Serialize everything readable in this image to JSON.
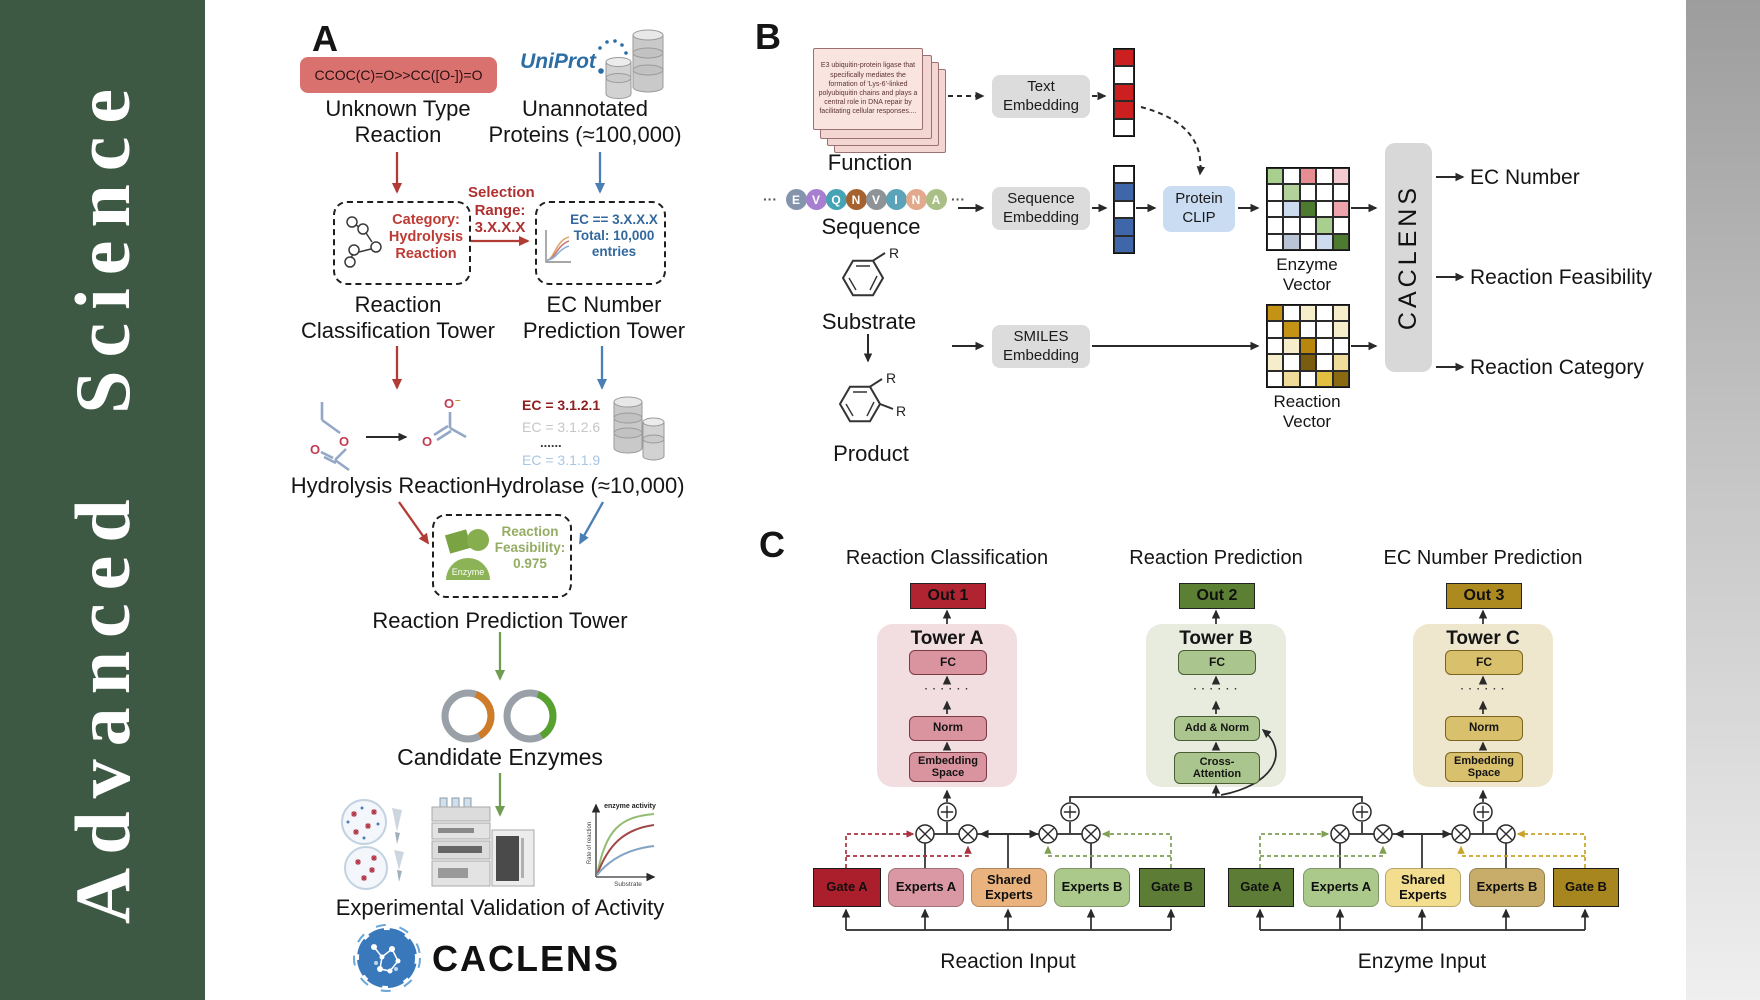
{
  "journal": {
    "name": "Advanced Science"
  },
  "panel_a": {
    "label": "A",
    "smiles": "CCOC(C)=O>>CC([O-])=O",
    "unknown_type": "Unknown Type\nReaction",
    "uniprot": "UniProt",
    "unannotated": "Unannotated\nProteins (≈100,000)",
    "selection_range": "Selection\nRange:\n3.X.X.X",
    "category_box": "Category:\nHydrolysis\nReaction",
    "ec_box": "EC == 3.X.X.X\nTotal: 10,000\nentries",
    "classification_tower": "Reaction\nClassification Tower",
    "ec_tower": "EC Number\nPrediction Tower",
    "hydrolysis_reaction": "Hydrolysis Reaction",
    "ec_list": {
      "l1": "EC = 3.1.2.1",
      "l2": "EC = 3.1.2.6",
      "l3": "......",
      "l4": "EC = 3.1.1.9"
    },
    "hydrolase": "Hydrolase (≈10,000)",
    "enzyme_badge": "Enzyme",
    "feasibility": "Reaction\nFeasibility:\n0.975",
    "prediction_tower": "Reaction Prediction Tower",
    "candidate_enzymes": "Candidate Enzymes",
    "activity_plot": {
      "curve_label": "enzyme activity",
      "ylabel": "Rate of reaction",
      "xlabel": "Substrate"
    },
    "validation": "Experimental Validation of Activity",
    "brand": "CACLENS"
  },
  "panel_b": {
    "label": "B",
    "function_card": "E3 ubiquitin-protein ligase that specifically mediates the formation of 'Lys-6'-linked polyubiquitin chains and plays a central role in DNA repair by facilitating cellular responses....",
    "function_label": "Function",
    "ellipsis": "···",
    "sequence_tokens": [
      {
        "t": "E",
        "c": "#8494ac"
      },
      {
        "t": "V",
        "c": "#a87fd0"
      },
      {
        "t": "Q",
        "c": "#45a3b5"
      },
      {
        "t": "N",
        "c": "#a6622e"
      },
      {
        "t": "V",
        "c": "#8e9397"
      },
      {
        "t": "I",
        "c": "#5ba3b8"
      },
      {
        "t": "N",
        "c": "#e2a98c"
      },
      {
        "t": "A",
        "c": "#a9bf85"
      }
    ],
    "sequence_label": "Sequence",
    "substrate_label": "Substrate",
    "product_label": "Product",
    "r_group": "R",
    "text_embedding": "Text\nEmbedding",
    "sequence_embedding": "Sequence\nEmbedding",
    "smiles_embedding": "SMILES\nEmbedding",
    "protein_clip": "Protein\nCLIP",
    "text_vector": [
      "#cc1f1f",
      "#ffffff",
      "#cc1f1f",
      "#cc1f1f",
      "#ffffff"
    ],
    "sequence_vector": [
      "#ffffff",
      "#3f66a8",
      "#ffffff",
      "#3f66a8",
      "#3f66a8"
    ],
    "enzyme_vector_label": "Enzyme Vector",
    "reaction_vector_label": "Reaction Vector",
    "enzyme_vector_grid": [
      [
        "#a9cf8e",
        "#ffffff",
        "#e58d90",
        "#ffffff",
        "#f4c9cf"
      ],
      [
        "#ffffff",
        "#b2d19b",
        "#ffffff",
        "#ffffff",
        "#ffffff"
      ],
      [
        "#ffffff",
        "#ccdcee",
        "#4d7a2f",
        "#ffffff",
        "#eda4ad"
      ],
      [
        "#ffffff",
        "#ffffff",
        "#ffffff",
        "#a9cf8e",
        "#ffffff"
      ],
      [
        "#ffffff",
        "#b9c4d6",
        "#ffffff",
        "#ccdcee",
        "#4d7a2f"
      ]
    ],
    "reaction_vector_grid": [
      [
        "#c49316",
        "#ffffff",
        "#f6eecb",
        "#ffffff",
        "#f6eecb"
      ],
      [
        "#ffffff",
        "#c49316",
        "#ffffff",
        "#ffffff",
        "#f6eecb"
      ],
      [
        "#ffffff",
        "#f6eecb",
        "#b8860b",
        "#ffffff",
        "#ffffff"
      ],
      [
        "#f6eecb",
        "#ffffff",
        "#7a5c0e",
        "#ffffff",
        "#f0dc9a"
      ],
      [
        "#ffffff",
        "#f0dc9a",
        "#ffffff",
        "#e3bf3f",
        "#8a6a10"
      ]
    ],
    "caclens": "CACLENS",
    "outputs": {
      "o1": "EC Number",
      "o2": "Reaction Feasibility",
      "o3": "Reaction Category"
    }
  },
  "panel_c": {
    "label": "C",
    "headers": {
      "h1": "Reaction Classification",
      "h2": "Reaction Prediction",
      "h3": "EC Number Prediction"
    },
    "tower_a": {
      "out": "Out 1",
      "title": "Tower A",
      "fc": "FC",
      "dots": "· · · · · ·",
      "norm": "Norm",
      "bottom": "Embedding\nSpace"
    },
    "tower_b": {
      "out": "Out 2",
      "title": "Tower B",
      "fc": "FC",
      "dots": "· · · · · ·",
      "norm": "Add & Norm",
      "bottom": "Cross-\nAttention"
    },
    "tower_c": {
      "out": "Out 3",
      "title": "Tower C",
      "fc": "FC",
      "dots": "· · · · · ·",
      "norm": "Norm",
      "bottom": "Embedding\nSpace"
    },
    "moe_reaction": {
      "gate_a": "Gate A",
      "experts_a": "Experts A",
      "shared": "Shared\nExperts",
      "experts_b": "Experts B",
      "gate_b": "Gate B",
      "input": "Reaction Input"
    },
    "moe_enzyme": {
      "gate_a": "Gate A",
      "experts_a": "Experts A",
      "shared": "Shared\nExperts",
      "experts_b": "Experts B",
      "gate_b": "Gate B",
      "input": "Enzyme Input"
    }
  }
}
